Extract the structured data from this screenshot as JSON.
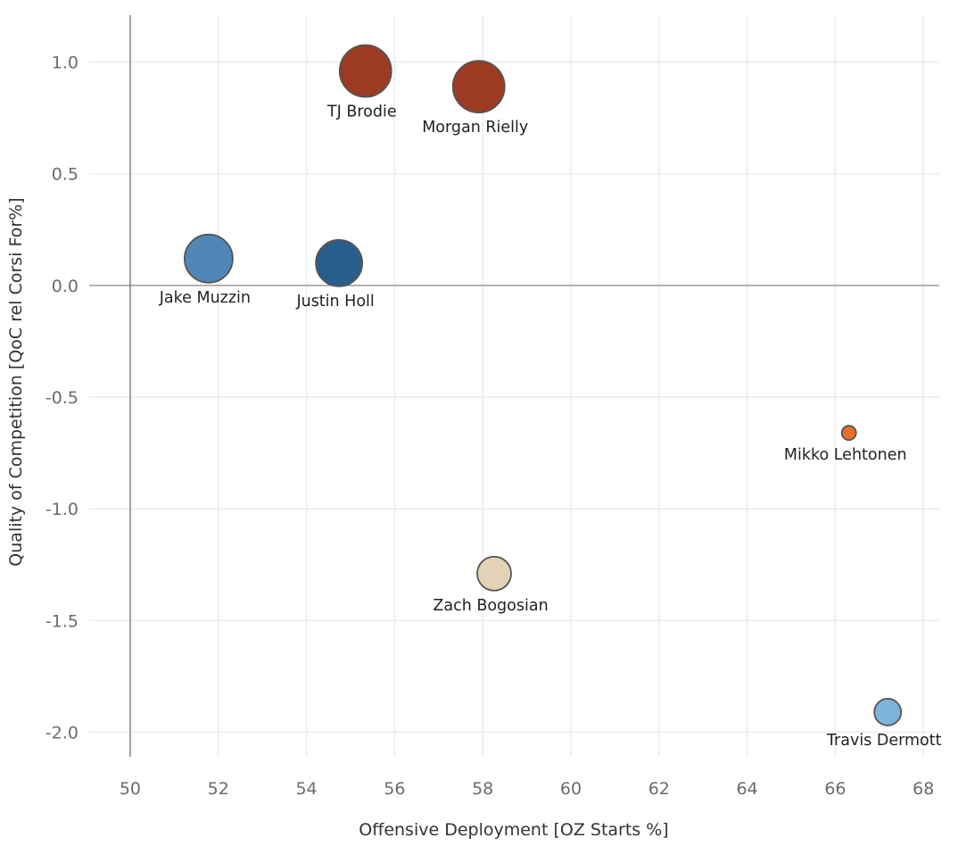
{
  "chart_data": {
    "type": "scatter",
    "title": "",
    "xlabel": "Offensive Deployment [OZ Starts %]",
    "ylabel": "Quality of Competition [QoC rel Corsi For%]",
    "xlim": [
      49.07,
      68.36
    ],
    "ylim": [
      -2.11,
      1.21
    ],
    "xticks": [
      50,
      52,
      54,
      56,
      58,
      60,
      62,
      64,
      66,
      68
    ],
    "yticks": [
      1.0,
      0.5,
      0.0,
      -0.5,
      -1.0,
      -1.5,
      -2.0
    ],
    "ytick_labels": [
      "1.0",
      "0.5",
      "0.0",
      "-0.5",
      "-1.0",
      "-1.5",
      "-2.0"
    ],
    "grid": true,
    "reference_lines": {
      "x": 50,
      "y": 0
    },
    "points": [
      {
        "name": "TJ Brodie",
        "x": 55.34,
        "y": 0.96,
        "size": 29,
        "color": "#9c3a22"
      },
      {
        "name": "Morgan Rielly",
        "x": 57.91,
        "y": 0.89,
        "size": 29,
        "color": "#9c3a22"
      },
      {
        "name": "Jake Muzzin",
        "x": 51.78,
        "y": 0.12,
        "size": 27,
        "color": "#5087b7"
      },
      {
        "name": "Justin Holl",
        "x": 54.74,
        "y": 0.1,
        "size": 26,
        "color": "#285e8c"
      },
      {
        "name": "Mikko Lehtonen",
        "x": 66.31,
        "y": -0.66,
        "size": 8,
        "color": "#ea702a"
      },
      {
        "name": "Zach Bogosian",
        "x": 58.26,
        "y": -1.29,
        "size": 19,
        "color": "#e3d2b6"
      },
      {
        "name": "Travis Dermott",
        "x": 67.19,
        "y": -1.91,
        "size": 15,
        "color": "#7db4da"
      }
    ]
  }
}
